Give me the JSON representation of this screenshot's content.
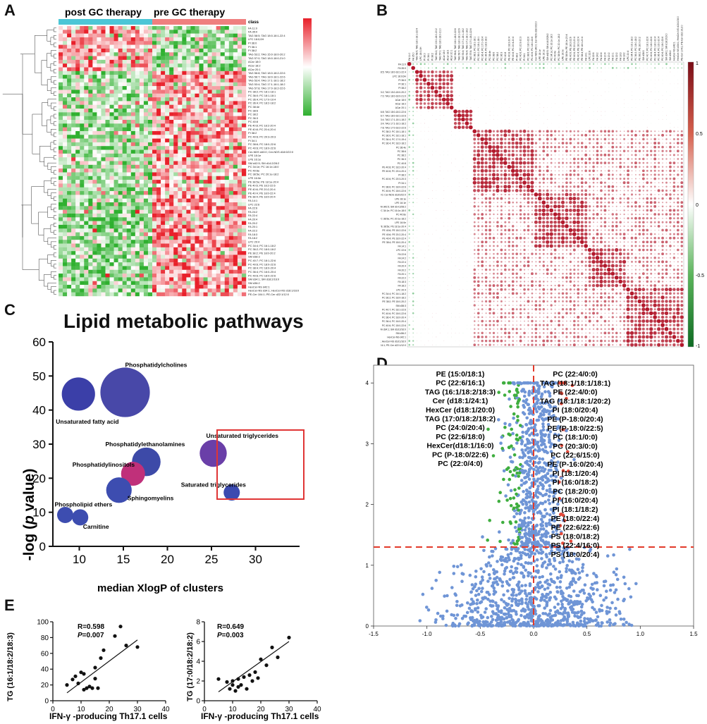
{
  "panels": {
    "a": "A",
    "b": "B",
    "c": "C",
    "d": "D",
    "e": "E"
  },
  "panel_a": {
    "class_label": "class",
    "group_post": "post GC therapy",
    "group_pre": "pre GC therapy",
    "colors": {
      "high": "#e8202a",
      "low": "#2fb02f",
      "post_bar": "#4cc6d6",
      "pre_bar": "#ef7f7f"
    },
    "row_labels": [
      "FA 11:0",
      "FA 35:0",
      "TAG 58:5; TAG 18:0-18:1-22:4",
      "LPC 18:0;0H",
      "PI 36:0",
      "PI 36:1",
      "PI 38:2",
      "TAG 53:2; TAG 15:0-18:0-20:2",
      "TAG 57:0; TAG 18:0-18:0-21:0",
      "ACar 18:0",
      "ACar 18:2",
      "ACar 20:1",
      "TAG 56:8; TAG 18:0-18:2-22:6",
      "TAG 56:7; TAG 18:0-18:1-22:6",
      "TAG 53:4; TAG 17:1-18:1-18:2",
      "TAG 53:4; TAG 17:1-18:1-18:2",
      "TAG 57:8; TAG 17:0-18:2-22:6",
      "PC 38:2; PC 18:1-18:1",
      "PC 36:0; PC 18:1-18:1",
      "PC 36:4; PC 17:0-19:4",
      "PC 36:4; PC 18:2-18:2",
      "PC 38:4e",
      "PC 38:6",
      "PC 38:2",
      "PC 36:3",
      "PC 40:8",
      "PE 40:8; PC 18:2-20:4",
      "PE 40:8; PC 20:4-20:4",
      "PI 38:2",
      "PC 40:6; PC 20:3-20:3",
      "PI 34:1",
      "PC 38:6; PC 18:0-22:6",
      "PC 40:6; PC 18:0-22:6",
      "Cer-NDS d40:0; Cer-NDS d18:0/22:0",
      "LPE 18:1e",
      "LPE 16:1e",
      "SM d42:5; SM d14:2/28:2",
      "PC 34:1e; PC 16:1e-18:0",
      "PC 40:6e",
      "PC 38:5e; PC 20:1e-18:2",
      "LPE 16:0e",
      "PE 38:5e; PE 18:1e-20:4",
      "PE 40:6; PE 18:2-22:6",
      "PE 40:6; PE 20:2-20:4",
      "PE 40:4; PE 18:0-22:4",
      "PE 38:4; PE 18:0-20:4",
      "FA 14:1",
      "LPC 22:6",
      "FA 22:6",
      "FA 24:2",
      "FA 22:4",
      "FA 20:4",
      "FA 20:2",
      "FA 20:1",
      "FA 22:2",
      "FA 18:3",
      "FA 18:2",
      "LPC 20:4",
      "PC 34:4; PC 16:1-18:2",
      "PC 36:2; PC 18:0-18:2",
      "PE 38:2; PE 18:0-20:2",
      "SM d38:3",
      "PC 40:7; PC 18:1-22:6",
      "PC 40:6; PC 18:0-22:6",
      "PC 38:4; PC 18:0-20:4",
      "PC 36:4; PC 16:0-20:4",
      "PC 40:6; PC 18:0-22:6",
      "SM d34:1; SM d18:2/16:0",
      "SM d36:2",
      "HexCer-NS d42:1",
      "HexCer-NS d34:1; HexCer-NS d18:1/16:0",
      "PE-Cer 104:1; PE-Cer d22:1/12:0"
    ]
  },
  "panel_b": {
    "colorbar_ticks": [
      "1",
      "0.5",
      "0",
      "-0.5",
      "-1"
    ],
    "colors": {
      "pos": "#b2182b",
      "neg": "#1f9a3a"
    }
  },
  "panel_c": {
    "title": "Lipid metabolic pathways",
    "xlabel": "median XlogP of clusters",
    "ylabel_parts": [
      "-log (",
      "p",
      " value)"
    ],
    "highlight_color": "#e03535"
  },
  "panel_d": {
    "left_labels": [
      "PE (15:0/18:1)",
      "PC (22:6/16:1)",
      "TAG (16:1/18:2/18:3)",
      "Cer (d18:1/24:1)",
      "HexCer (d18:1/20:0)",
      "TAG (17:0/18:2/18:2)",
      "PC (24:0/20:4)",
      "PC (22:6/18:0)",
      "HexCer(d18:1/16:0)",
      "PC (P-18:0/22:6)",
      "PC (22:0/4:0)"
    ],
    "right_labels": [
      "PC (22:4/0:0)",
      "TAG (18:1/18:1/18:1)",
      "PE (22:4/0:0)",
      "TAG (18:1/18:1/20:2)",
      "PI (18:0/20:4)",
      "PE (P-18:0/20:4)",
      "PE (P-18:0/22:5)",
      "PC (18:1/0:0)",
      "PC (20:3/0:0)",
      "PC (22:6/15:0)",
      "PE (P-16:0/20:4)",
      "PI (18:1/20:4)",
      "PI (16:0/18:2)",
      "PC (18:2/0:0)",
      "PI (16:0/20:4)",
      "PI (18:1/18:2)",
      "PE (18:0/22:4)",
      "PE (22:6/22:6)",
      "PS (18:0/18:2)",
      "PS (22:4/16:0)",
      "PS (18:0/20:4)"
    ],
    "colors": {
      "ns": "#6f95d6",
      "up": "#e34a3a",
      "down": "#3fae3f",
      "threshold": "#e23a2a"
    }
  },
  "panel_e": {
    "left": {
      "ylabel": "TG (16:1/18:2/18:3)",
      "xlabel": "IFN-γ -producing Th17.1 cells",
      "r_label": "R=0.598",
      "p_label": "=0.007"
    },
    "right": {
      "ylabel": "TG (17:0/18:2/18:2)",
      "xlabel": "IFN-γ -producing Th17.1 cells",
      "r_label": "R=0.649",
      "p_label": "=0.003"
    }
  },
  "chart_data": [
    {
      "type": "scatter",
      "name": "C",
      "title": "Lipid metabolic pathways",
      "xlabel": "median XlogP of clusters",
      "ylabel": "-log (p value)",
      "xlim": [
        7,
        35
      ],
      "ylim": [
        0,
        60
      ],
      "xticks": [
        10,
        15,
        20,
        25,
        30
      ],
      "yticks": [
        0,
        10,
        20,
        30,
        40,
        50,
        60
      ],
      "points": [
        {
          "label": "Unsaturated fatty acid",
          "x": 9.9,
          "y": 44.7,
          "size": 3.2,
          "color": "#3b3fa8"
        },
        {
          "label": "Phosphatidylcholines",
          "x": 15.2,
          "y": 45.2,
          "size": 5.3,
          "color": "#4848a8"
        },
        {
          "label": "Phosphatidylethanolamines",
          "x": 17.6,
          "y": 24.8,
          "size": 2.6,
          "color": "#3d4aa8"
        },
        {
          "label": "Phosphatidylinositols",
          "x": 16.1,
          "y": 21.3,
          "size": 2.0,
          "color": "#c0307a"
        },
        {
          "label": "Sphingomyelins",
          "x": 14.5,
          "y": 16.5,
          "size": 2.2,
          "color": "#3d4db0"
        },
        {
          "label": "Unsaturated triglycerides",
          "x": 25.2,
          "y": 27.3,
          "size": 2.4,
          "color": "#6a3fa8"
        },
        {
          "label": "Saturated triglycerides",
          "x": 27.3,
          "y": 15.8,
          "size": 1.0,
          "color": "#3b4ab0"
        },
        {
          "label": "Phospholipid ethers",
          "x": 8.4,
          "y": 9.2,
          "size": 1.0,
          "color": "#3d4db0"
        },
        {
          "label": "Carnitine",
          "x": 10.1,
          "y": 8.5,
          "size": 1.0,
          "color": "#3d4db0"
        }
      ]
    },
    {
      "type": "scatter",
      "name": "D",
      "xlim": [
        -1.5,
        1.5
      ],
      "ylim": [
        0,
        4.2
      ],
      "xticks": [
        -1.5,
        -1.0,
        -0.5,
        0.0,
        0.5,
        1.0,
        1.5
      ],
      "yticks": [
        0,
        1,
        2,
        3,
        4
      ],
      "threshold_y": 1.3,
      "threshold_x": 0.0
    },
    {
      "type": "scatter",
      "name": "E-left",
      "xlim": [
        0,
        40
      ],
      "ylim": [
        0,
        100
      ],
      "xticks": [
        0,
        10,
        20,
        30,
        40
      ],
      "yticks": [
        0,
        20,
        40,
        60,
        80,
        100
      ],
      "xlabel": "IFN-γ -producing Th17.1 cells",
      "ylabel": "TG (16:1/18:2/18:3)",
      "points": [
        [
          5,
          20
        ],
        [
          7,
          27
        ],
        [
          8,
          31
        ],
        [
          9,
          22
        ],
        [
          10,
          36
        ],
        [
          11,
          14
        ],
        [
          11,
          34
        ],
        [
          12,
          16
        ],
        [
          13,
          18
        ],
        [
          14,
          16
        ],
        [
          15,
          28
        ],
        [
          15,
          42
        ],
        [
          16,
          16
        ],
        [
          17,
          54
        ],
        [
          18,
          64
        ],
        [
          22,
          82
        ],
        [
          24,
          94
        ],
        [
          26,
          70
        ],
        [
          30,
          68
        ]
      ],
      "fit": [
        [
          5,
          10
        ],
        [
          30,
          77
        ]
      ]
    },
    {
      "type": "scatter",
      "name": "E-right",
      "xlim": [
        0,
        40
      ],
      "ylim": [
        0,
        8
      ],
      "xticks": [
        0,
        10,
        20,
        30,
        40
      ],
      "yticks": [
        0,
        2,
        4,
        6,
        8
      ],
      "xlabel": "IFN-γ -producing Th17.1 cells",
      "ylabel": "TG (17:0/18:2/18:2)",
      "points": [
        [
          5,
          2.2
        ],
        [
          8,
          1.9
        ],
        [
          9,
          1.2
        ],
        [
          10,
          2.0
        ],
        [
          10,
          1.6
        ],
        [
          11,
          1.0
        ],
        [
          12,
          2.2
        ],
        [
          12,
          1.4
        ],
        [
          13,
          1.6
        ],
        [
          14,
          2.4
        ],
        [
          15,
          1.2
        ],
        [
          16,
          2.6
        ],
        [
          17,
          2.0
        ],
        [
          18,
          2.9
        ],
        [
          19,
          2.3
        ],
        [
          20,
          4.2
        ],
        [
          22,
          3.6
        ],
        [
          24,
          5.4
        ],
        [
          26,
          4.4
        ],
        [
          30,
          6.4
        ]
      ],
      "fit": [
        [
          5,
          0.9
        ],
        [
          30,
          6.0
        ]
      ]
    }
  ]
}
